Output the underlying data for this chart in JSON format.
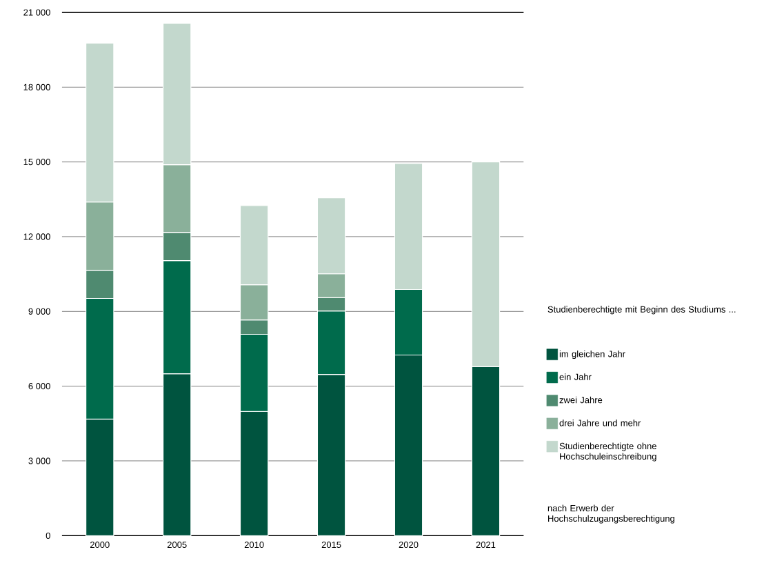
{
  "chart_data": {
    "type": "bar",
    "stacked": true,
    "categories": [
      "2000",
      "2005",
      "2010",
      "2015",
      "2020",
      "2021"
    ],
    "series": [
      {
        "name": "im gleichen Jahr",
        "color": "#00543f",
        "values": [
          4680,
          6500,
          4980,
          6470,
          7250,
          6780
        ]
      },
      {
        "name": "ein Jahr",
        "color": "#006b4c",
        "values": [
          4840,
          4540,
          3100,
          2550,
          2630,
          null
        ]
      },
      {
        "name": "zwei Jahre",
        "color": "#4f8a70",
        "values": [
          1130,
          1130,
          580,
          530,
          null,
          null
        ]
      },
      {
        "name": "drei Jahre und mehr",
        "color": "#8ab09a",
        "values": [
          2740,
          2720,
          1410,
          960,
          null,
          null
        ]
      },
      {
        "name": "Studienberechtigte ohne Hochschuleinschreibung",
        "color": "#c3d8cd",
        "values": [
          6370,
          5670,
          3180,
          3050,
          5060,
          8220
        ]
      }
    ],
    "ylim": [
      0,
      21000
    ],
    "yticks": [
      {
        "value": 0,
        "label": "0"
      },
      {
        "value": 3000,
        "label": "3 000"
      },
      {
        "value": 6000,
        "label": "6 000"
      },
      {
        "value": 9000,
        "label": "9 000"
      },
      {
        "value": 12000,
        "label": "12 000"
      },
      {
        "value": 15000,
        "label": "15 000"
      },
      {
        "value": 18000,
        "label": "18 000"
      },
      {
        "value": 21000,
        "label": "21 000"
      }
    ],
    "grid": "y",
    "legend": "right",
    "legend_title": "Studienberechtigte mit Beginn des Studiums ...",
    "annotations": [
      "nach Erwerb der Hochschulzugangsberechtigung"
    ]
  }
}
